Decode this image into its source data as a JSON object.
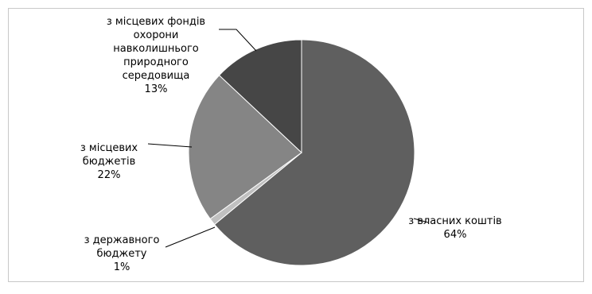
{
  "chart_data": {
    "type": "pie",
    "title": "",
    "slices": [
      {
        "label_lines": [
          "з власних коштів"
        ],
        "value_text": "64%",
        "value": 64,
        "color": "#5f5f5f"
      },
      {
        "label_lines": [
          "з державного",
          "бюджету"
        ],
        "value_text": "1%",
        "value": 1,
        "color": "#c0c0c0"
      },
      {
        "label_lines": [
          "з місцевих",
          "бюджетів"
        ],
        "value_text": "22%",
        "value": 22,
        "color": "#858585"
      },
      {
        "label_lines": [
          "з місцевих фондів",
          "охорони",
          "навколишнього",
          "природного",
          "середовища"
        ],
        "value_text": "13%",
        "value": 13,
        "color": "#464646"
      }
    ],
    "legend": "none",
    "data_labels": "outside with leader lines"
  }
}
